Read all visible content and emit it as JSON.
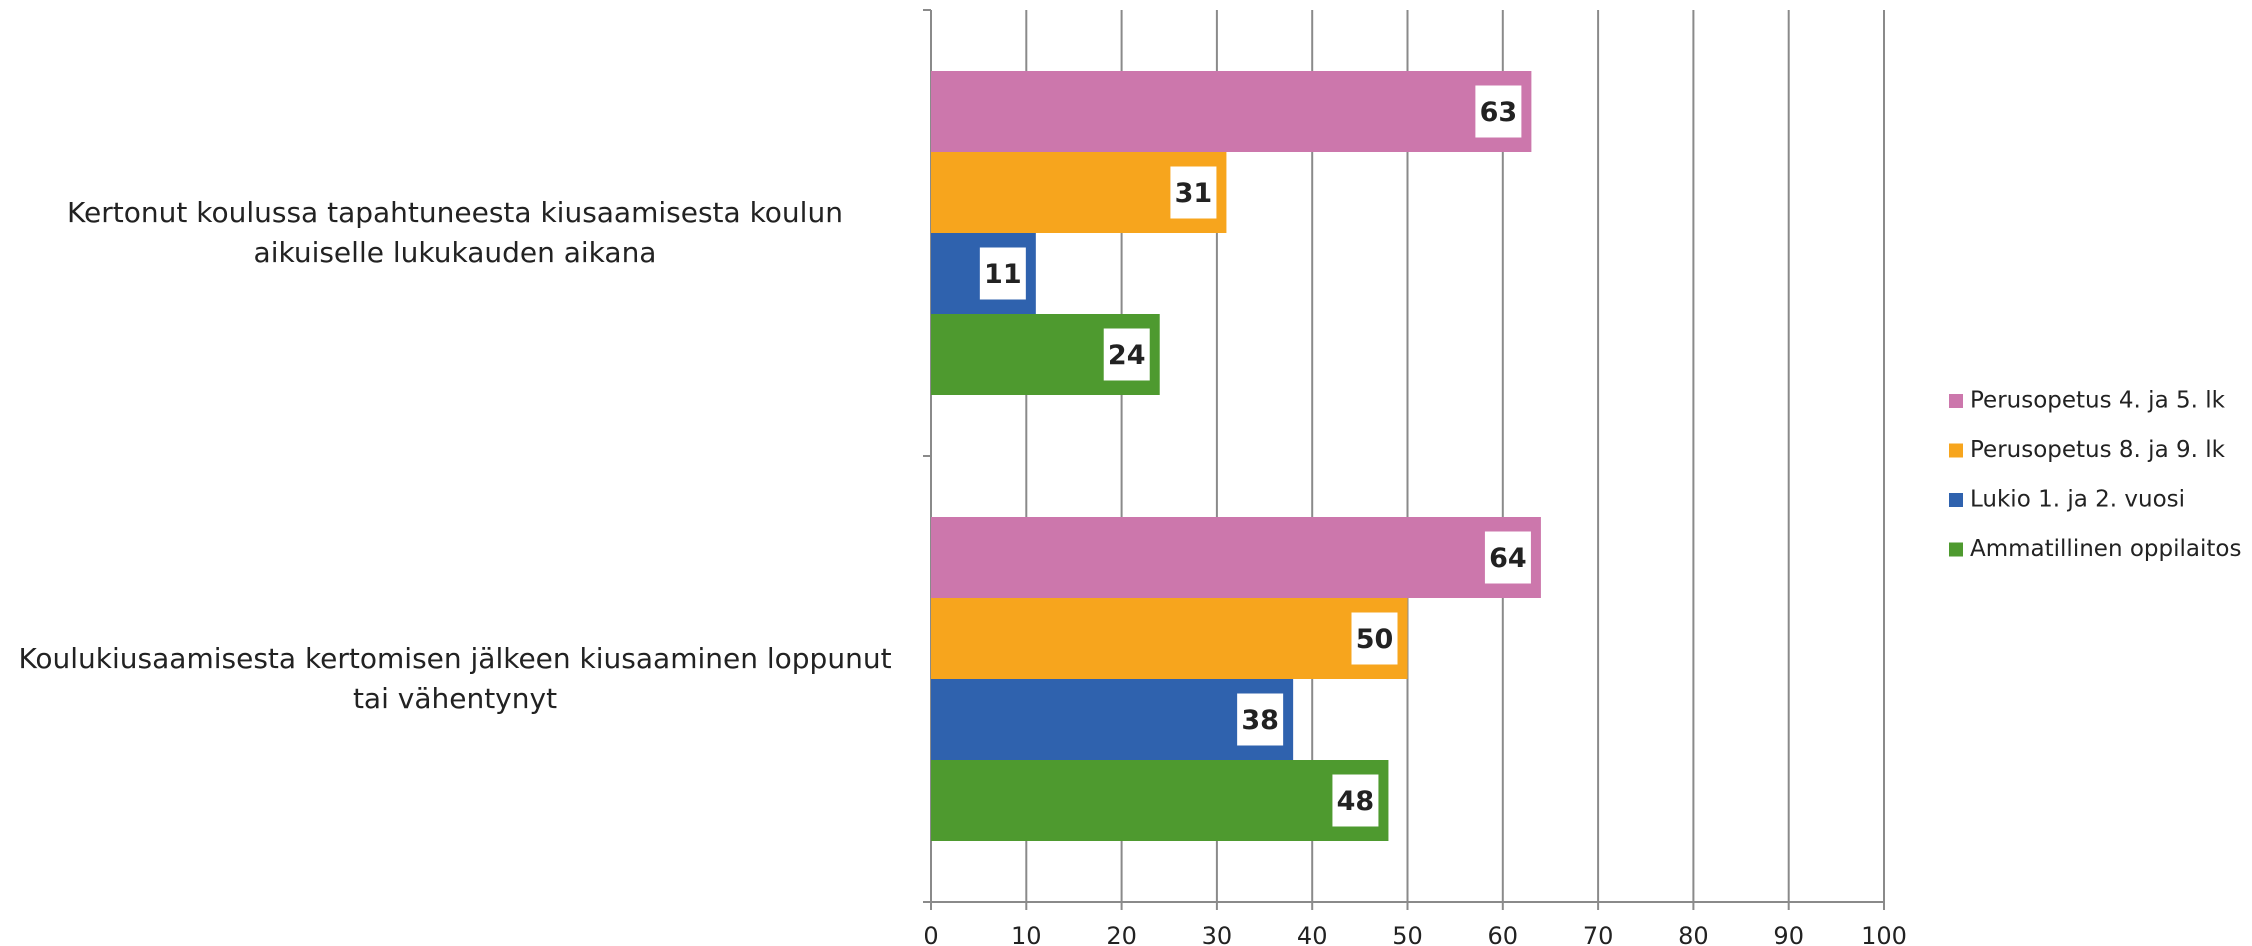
{
  "chart_data": {
    "type": "bar",
    "orientation": "horizontal",
    "categories": [
      "Kertonut koulussa tapahtuneesta kiusaamisesta koulun aikuiselle lukukauden aikana",
      "Koulukiusaamisesta kertomisen jälkeen kiusaaminen loppunut tai vähentynyt"
    ],
    "series": [
      {
        "name": "Perusopetus 4. ja 5. lk",
        "color": "#cc77ac",
        "values": [
          63,
          64
        ]
      },
      {
        "name": "Perusopetus 8. ja 9. lk",
        "color": "#f7a51d",
        "values": [
          31,
          50
        ]
      },
      {
        "name": "Lukio 1. ja 2. vuosi",
        "color": "#2f62ae",
        "values": [
          11,
          38
        ]
      },
      {
        "name": "Ammatillinen oppilaitos",
        "color": "#4e9a2f",
        "values": [
          24,
          48
        ]
      }
    ],
    "xlim": [
      0,
      100
    ],
    "xticks": [
      0,
      10,
      20,
      30,
      40,
      50,
      60,
      70,
      80,
      90,
      100
    ],
    "grid": true,
    "legend": "right"
  }
}
